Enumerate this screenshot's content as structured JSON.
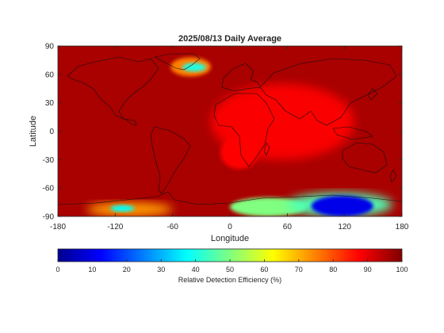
{
  "chart_data": {
    "type": "heatmap",
    "title": "2025/08/13 Daily Average",
    "xlabel": "Longitude",
    "ylabel": "Latitude",
    "xlim": [
      -180,
      180
    ],
    "ylim": [
      -90,
      90
    ],
    "x_ticks": [
      -180,
      -120,
      -60,
      0,
      60,
      120,
      180
    ],
    "y_ticks": [
      90,
      60,
      30,
      0,
      -30,
      -60,
      -90
    ],
    "grid": false,
    "colormap": "jet",
    "colorbar": {
      "label": "Relative Detection Efficiency (%)",
      "range": [
        0,
        100
      ],
      "ticks": [
        0,
        10,
        20,
        30,
        40,
        50,
        60,
        70,
        80,
        90,
        100
      ],
      "placement": "bottom"
    },
    "background_value": 96,
    "regions": [
      {
        "name": "Greenland low",
        "lon": [
          -50,
          -25
        ],
        "lat": [
          63,
          72
        ],
        "value": 40
      },
      {
        "name": "Greenland rim",
        "lon": [
          -62,
          -20
        ],
        "lat": [
          58,
          78
        ],
        "value": 75
      },
      {
        "name": "Africa / Indian Ocean band",
        "lon": [
          -20,
          130
        ],
        "lat": [
          -30,
          50
        ],
        "value": 88
      },
      {
        "name": "South Atlantic",
        "lon": [
          -10,
          30
        ],
        "lat": [
          -40,
          -5
        ],
        "value": 87
      },
      {
        "name": "Antarctica (West) low",
        "lon": [
          -125,
          -100
        ],
        "lat": [
          -85,
          -78
        ],
        "value": 38
      },
      {
        "name": "Antarctica (West) edge",
        "lon": [
          -150,
          -60
        ],
        "lat": [
          -90,
          -75
        ],
        "value": 72
      },
      {
        "name": "Antarctica (0-80E)",
        "lon": [
          0,
          80
        ],
        "lat": [
          -90,
          -70
        ],
        "value": 50
      },
      {
        "name": "Antarctica (East) minimum",
        "lon": [
          85,
          150
        ],
        "lat": [
          -90,
          -68
        ],
        "value": 10
      },
      {
        "name": "Antarctica (East) rim",
        "lon": [
          60,
          170
        ],
        "lat": [
          -90,
          -65
        ],
        "value": 45
      }
    ]
  }
}
